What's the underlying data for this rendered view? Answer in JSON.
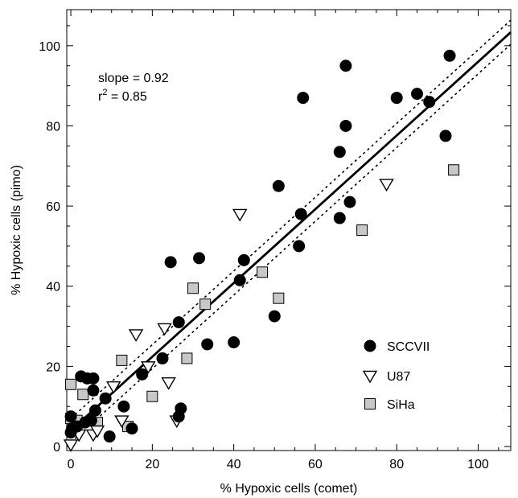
{
  "chart_data": {
    "type": "scatter",
    "xlabel": "% Hypoxic cells (comet)",
    "ylabel": "% Hypoxic cells (pimo)",
    "xlim": [
      -1,
      108
    ],
    "ylim": [
      -1,
      109
    ],
    "xticks": [
      0,
      20,
      40,
      60,
      80,
      100
    ],
    "yticks": [
      0,
      20,
      40,
      60,
      80,
      100
    ],
    "grid": false,
    "legend_position": "lower-right",
    "annotation": {
      "slope_text": "slope = 0.92",
      "r_prefix": "r",
      "r_sup": "2",
      "r_suffix": " = 0.85"
    },
    "fit_line": {
      "slope": 0.92,
      "intercept": 4.0,
      "style": "solid"
    },
    "confidence_lines": [
      {
        "slope": 0.92,
        "intercept": 7.0,
        "style": "dotted"
      },
      {
        "slope": 0.92,
        "intercept": 1.0,
        "style": "dotted"
      }
    ],
    "series": [
      {
        "name": "SCCVII",
        "marker": "circle",
        "color": "#000000",
        "points": [
          [
            0,
            3.5
          ],
          [
            0,
            7.5
          ],
          [
            0.3,
            4.5
          ],
          [
            1.5,
            5
          ],
          [
            2.5,
            17.5
          ],
          [
            3.5,
            6
          ],
          [
            4,
            17
          ],
          [
            5,
            6.5
          ],
          [
            5.5,
            14
          ],
          [
            5.5,
            17
          ],
          [
            6,
            9
          ],
          [
            8.5,
            12
          ],
          [
            9.5,
            2.5
          ],
          [
            13,
            10
          ],
          [
            15,
            4.5
          ],
          [
            17.5,
            18
          ],
          [
            22.5,
            22
          ],
          [
            24.5,
            46
          ],
          [
            26.5,
            7.5
          ],
          [
            26.5,
            31
          ],
          [
            27,
            9.5
          ],
          [
            31.5,
            47
          ],
          [
            33.5,
            25.5
          ],
          [
            40,
            26
          ],
          [
            41.5,
            41.5
          ],
          [
            42.5,
            46.5
          ],
          [
            50,
            32.5
          ],
          [
            51,
            65
          ],
          [
            56,
            50
          ],
          [
            56.5,
            58
          ],
          [
            57,
            87
          ],
          [
            66,
            57
          ],
          [
            66,
            73.5
          ],
          [
            67.5,
            95
          ],
          [
            67.5,
            80
          ],
          [
            68.5,
            61
          ],
          [
            80,
            87
          ],
          [
            85,
            88
          ],
          [
            88,
            86
          ],
          [
            92,
            77.5
          ],
          [
            93,
            97.5
          ]
        ]
      },
      {
        "name": "U87",
        "marker": "triangle-down",
        "color": "#ffffff",
        "points": [
          [
            0,
            0.5
          ],
          [
            2,
            3
          ],
          [
            5.5,
            3
          ],
          [
            6.5,
            4
          ],
          [
            10.5,
            15
          ],
          [
            12.5,
            6.5
          ],
          [
            16,
            28
          ],
          [
            19,
            20
          ],
          [
            23,
            29.5
          ],
          [
            24,
            16
          ],
          [
            26,
            6.5
          ],
          [
            41.5,
            58
          ],
          [
            77.5,
            65.5
          ]
        ]
      },
      {
        "name": "SiHa",
        "marker": "square",
        "color": "#c8c8c8",
        "points": [
          [
            0,
            15.5
          ],
          [
            0,
            7
          ],
          [
            1.5,
            6.5
          ],
          [
            3,
            13
          ],
          [
            6.5,
            6
          ],
          [
            12.5,
            21.5
          ],
          [
            14,
            5
          ],
          [
            20,
            12.5
          ],
          [
            28.5,
            22
          ],
          [
            30,
            39.5
          ],
          [
            33,
            35.5
          ],
          [
            47,
            43.5
          ],
          [
            51,
            37
          ],
          [
            71.5,
            54
          ],
          [
            94,
            69
          ]
        ]
      }
    ]
  }
}
